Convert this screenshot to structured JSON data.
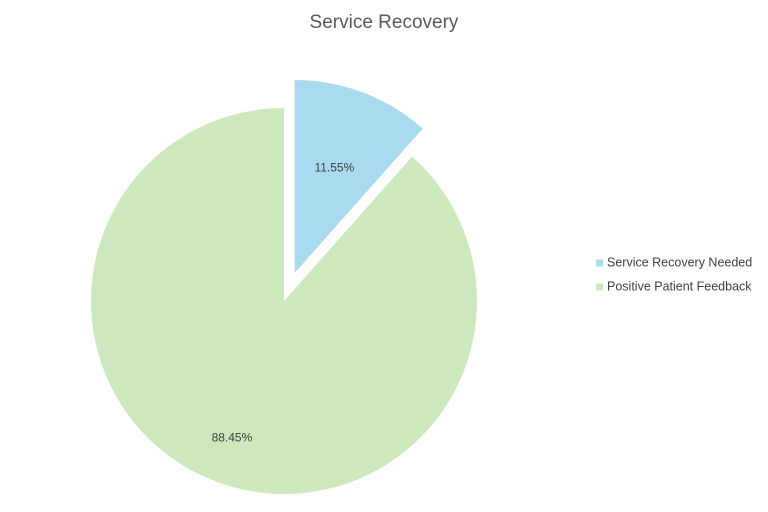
{
  "chart_data": {
    "type": "pie",
    "title": "Service Recovery",
    "categories": [
      "Service Recovery Needed",
      "Positive Patient Feedback"
    ],
    "values": [
      11.55,
      88.45
    ],
    "value_labels": [
      "11.55%",
      "88.45%"
    ],
    "colors": [
      "#a9daf0",
      "#cce8bc"
    ],
    "explode": [
      true,
      false
    ],
    "legend": "right"
  }
}
